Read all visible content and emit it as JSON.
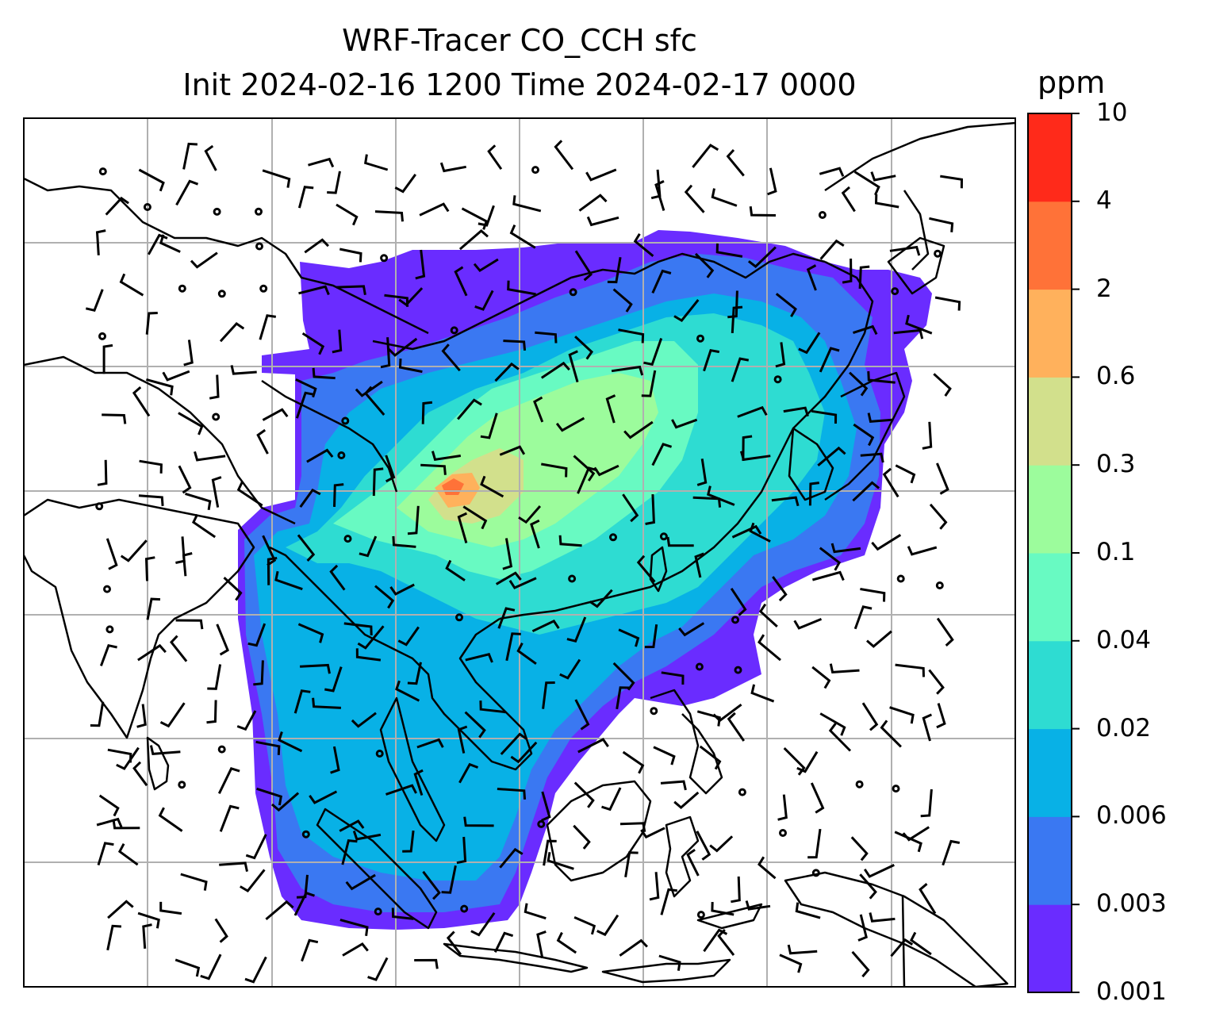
{
  "title_line1": "WRF-Tracer CO_CCH sfc",
  "title_line2": "Init 2024-02-16 1200 Time 2024-02-17 0000",
  "colorbar": {
    "unit": "ppm",
    "levels": [
      "0.001",
      "0.003",
      "0.006",
      "0.02",
      "0.04",
      "0.1",
      "0.3",
      "0.6",
      "2",
      "4",
      "10"
    ],
    "colors": [
      "#6a2cff",
      "#3a78f2",
      "#08b1e6",
      "#2edcd2",
      "#68fac2",
      "#9cfc9c",
      "#d2e08c",
      "#ffb15c",
      "#ff7238",
      "#ff2a1a"
    ]
  },
  "map": {
    "coastline_color": "#000000",
    "gridline_color": "#b0b0b0",
    "field": "CO_CCH tracer concentration, shaded; wind barbs overlaid"
  }
}
